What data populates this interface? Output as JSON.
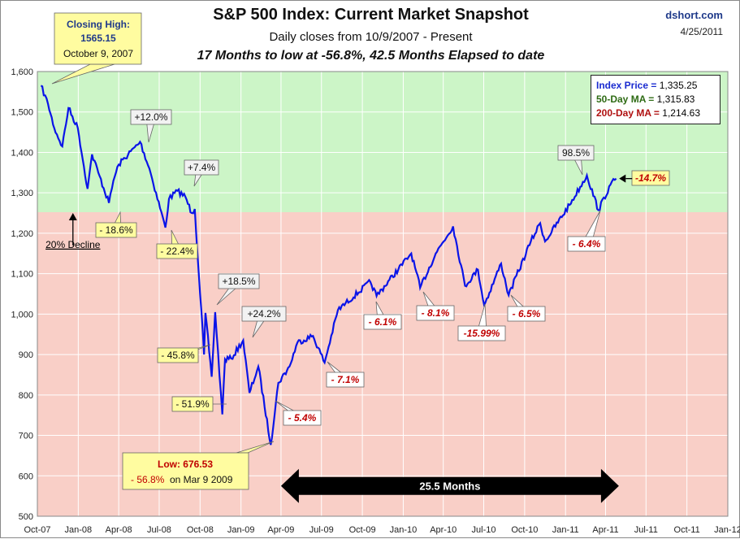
{
  "header": {
    "title": "S&P 500 Index: Current Market Snapshot",
    "subtitle": "Daily closes from 10/9/2007 - Present",
    "summary": "17 Months to low at -56.8%,  42.5  Months Elapsed to date",
    "source": "dshort.com",
    "date": "4/25/2011"
  },
  "legend": {
    "index_label": "Index Price =",
    "index_value": "1,335.25",
    "ma50_label": "50-Day MA =",
    "ma50_value": "1,315.83",
    "ma200_label": "200-Day MA =",
    "ma200_value": "1,214.63",
    "index_color": "#1a2bd0",
    "ma50_color": "#2e6b14",
    "ma200_color": "#b01010"
  },
  "colors": {
    "line": "#0a14e8",
    "upper_zone": "#ccf5c7",
    "lower_zone": "#f9cfc7",
    "grid": "#ffffff",
    "yellow_callout": "#fffca0",
    "white_callout": "#f2f2f2",
    "red_text": "#c00000"
  },
  "chart_data": {
    "type": "line",
    "ylim": [
      500,
      1600
    ],
    "xlim": [
      "2007-10",
      "2012-01"
    ],
    "yticks": [
      "500",
      "600",
      "700",
      "800",
      "900",
      "1,000",
      "1,100",
      "1,200",
      "1,300",
      "1,400",
      "1,500",
      "1,600"
    ],
    "xticks": [
      "Oct-07",
      "Jan-08",
      "Apr-08",
      "Jul-08",
      "Oct-08",
      "Jan-09",
      "Apr-09",
      "Jul-09",
      "Oct-09",
      "Jan-10",
      "Apr-10",
      "Jul-10",
      "Oct-10",
      "Jan-11",
      "Apr-11",
      "Jul-11",
      "Oct-11",
      "Jan-12"
    ],
    "zones": [
      {
        "from": 1252.1,
        "to": 1600,
        "name": "above 20% decline"
      },
      {
        "from": 500,
        "to": 1252.1,
        "name": "below 20% decline"
      }
    ],
    "series": [
      {
        "x": [
          "2007-10-09",
          "2007-10-25",
          "2007-11-08",
          "2007-11-26",
          "2007-12-10",
          "2007-12-31",
          "2008-01-22",
          "2008-02-01",
          "2008-02-15",
          "2008-03-10",
          "2008-03-20",
          "2008-04-01",
          "2008-05-19",
          "2008-06-09",
          "2008-07-15",
          "2008-07-23",
          "2008-08-11",
          "2008-08-29",
          "2008-09-12",
          "2008-09-19",
          "2008-10-10",
          "2008-10-13",
          "2008-10-27",
          "2008-11-04",
          "2008-11-20",
          "2008-11-26",
          "2008-12-10",
          "2009-01-06",
          "2009-01-20",
          "2009-02-09",
          "2009-03-09",
          "2009-03-26",
          "2009-04-20",
          "2009-05-08",
          "2009-06-12",
          "2009-07-08",
          "2009-08-07",
          "2009-10-19",
          "2009-11-02",
          "2010-01-19",
          "2010-02-08",
          "2010-03-15",
          "2010-04-23",
          "2010-05-20",
          "2010-06-18",
          "2010-07-02",
          "2010-08-09",
          "2010-08-26",
          "2010-10-15",
          "2010-11-05",
          "2010-11-16",
          "2011-01-10",
          "2011-02-18",
          "2011-03-16",
          "2011-04-12",
          "2011-04-25"
        ],
        "values": [
          1565.15,
          1520,
          1460,
          1415,
          1510,
          1460,
          1310,
          1395,
          1350,
          1275,
          1330,
          1370,
          1426,
          1360,
          1214,
          1285,
          1305,
          1290,
          1250,
          1260,
          900,
          1003,
          845,
          1005,
          752,
          888,
          890,
          935,
          805,
          870,
          676.53,
          830,
          870,
          930,
          946,
          880,
          1010,
          1080,
          1045,
          1150,
          1065,
          1150,
          1217,
          1070,
          1110,
          1022,
          1125,
          1047,
          1180,
          1225,
          1180,
          1270,
          1343,
          1257,
          1320,
          1335.25
        ]
      }
    ],
    "annotations": [
      {
        "text": "Closing High:",
        "text2": "1565.15",
        "text3": "October 9, 2007",
        "style": "yellow"
      },
      {
        "text": "+12.0%",
        "style": "white"
      },
      {
        "text": "+7.4%",
        "style": "white"
      },
      {
        "text": "+18.5%",
        "style": "white"
      },
      {
        "text": "+24.2%",
        "style": "white"
      },
      {
        "text": "98.5%",
        "style": "white"
      },
      {
        "text": "- 18.6%",
        "style": "yellow"
      },
      {
        "text": "- 22.4%",
        "style": "yellow"
      },
      {
        "text": "- 45.8%",
        "style": "yellow"
      },
      {
        "text": "- 51.9%",
        "style": "yellow"
      },
      {
        "text": "- 5.4%",
        "style": "red"
      },
      {
        "text": "- 7.1%",
        "style": "red"
      },
      {
        "text": "- 6.1%",
        "style": "red"
      },
      {
        "text": "- 8.1%",
        "style": "red"
      },
      {
        "text": "-15.99%",
        "style": "red"
      },
      {
        "text": "- 6.5%",
        "style": "red"
      },
      {
        "text": "- 6.4%",
        "style": "red"
      },
      {
        "text": "-14.7%",
        "style": "yellowred"
      },
      {
        "text": "20% Decline",
        "style": "label"
      },
      {
        "text": "Low: 676.53",
        "text2": "- 56.8%",
        "text3": "on Mar 9 2009",
        "style": "yellow"
      },
      {
        "text": "25.5  Months",
        "style": "arrow"
      }
    ]
  }
}
